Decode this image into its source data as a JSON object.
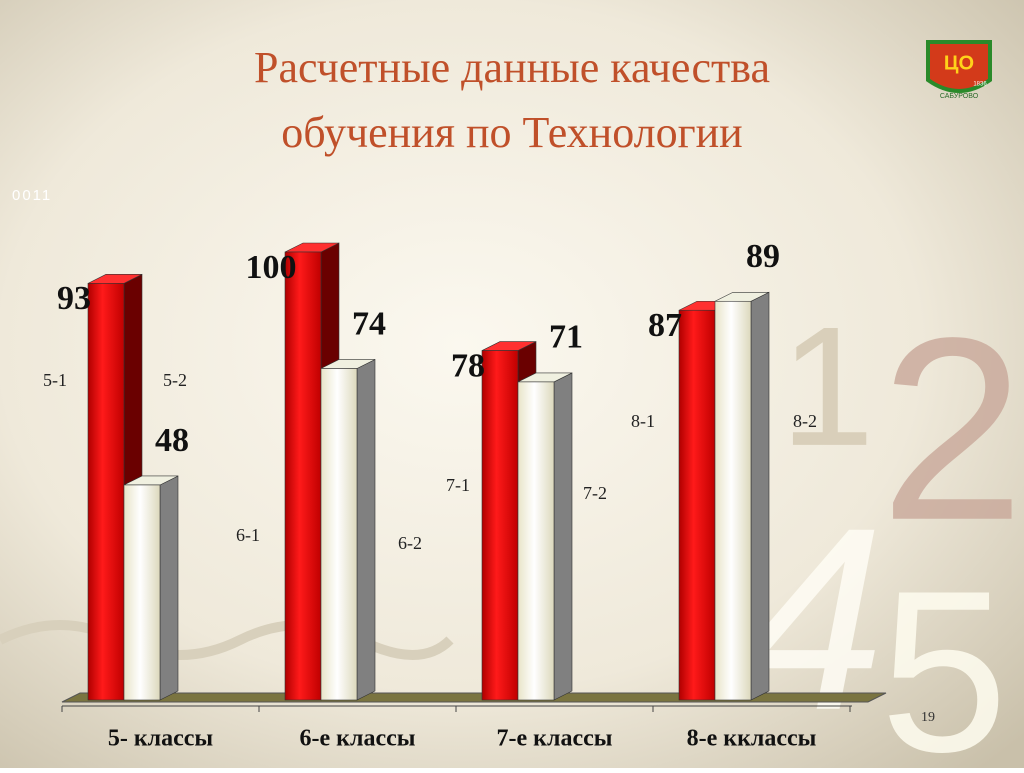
{
  "chart_data": {
    "type": "bar3d",
    "title": [
      "Расчетные данные качества",
      "обучения по Технологии"
    ],
    "categories": [
      "5- классы",
      "6-е классы",
      "7-е классы",
      "8-е кклассы"
    ],
    "series": [
      {
        "color": "#e00000",
        "values": [
          93,
          100,
          78,
          87
        ],
        "bar_labels": [
          "5-1",
          "6-1",
          "7-1",
          "8-1"
        ]
      },
      {
        "color": "#fffde8",
        "values": [
          48,
          74,
          71,
          89
        ],
        "bar_labels": [
          "5-2",
          "6-2",
          "7-2",
          "8-2"
        ]
      }
    ]
  },
  "slide": {
    "number": "19",
    "code": "0011",
    "decor": [
      "1",
      "2",
      "4",
      "5"
    ],
    "logo": [
      "ЦО",
      "САБУРОВО",
      "1836"
    ]
  }
}
